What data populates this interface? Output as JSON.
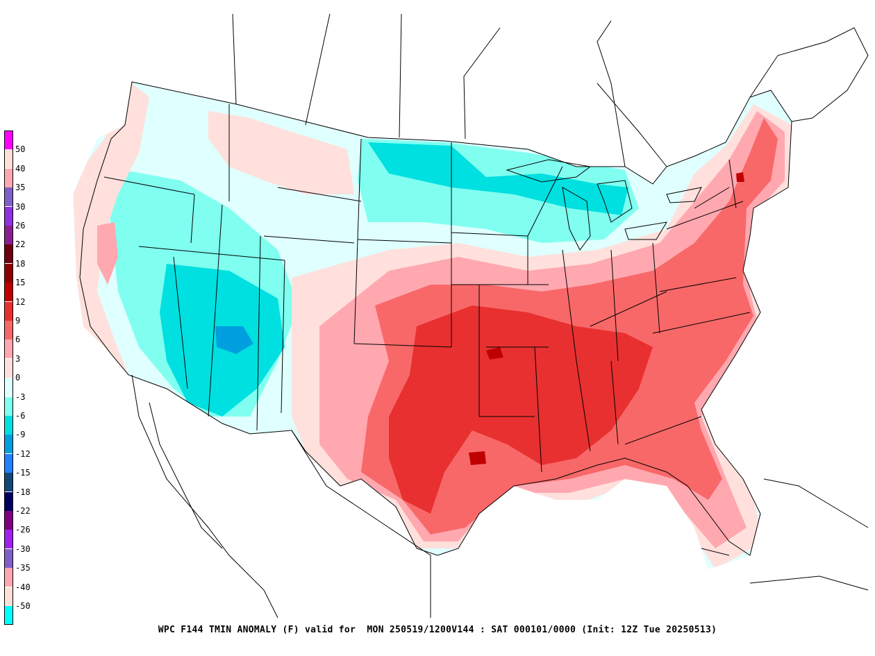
{
  "title": "WPC F144 TMIN ANOMALY (F) valid for  MON 250519/1200V144 : SAT 000101/0000 (Init: 12Z Tue 20250513)",
  "legend": {
    "entries": [
      {
        "label": "50",
        "color": "#ff00ff"
      },
      {
        "label": "40",
        "color": "#ffe0d8"
      },
      {
        "label": "35",
        "color": "#ffa8b0"
      },
      {
        "label": "30",
        "color": "#8060c8"
      },
      {
        "label": "26",
        "color": "#9030e0"
      },
      {
        "label": "22",
        "color": "#8a2090"
      },
      {
        "label": "18",
        "color": "#700010"
      },
      {
        "label": "15",
        "color": "#900000"
      },
      {
        "label": "12",
        "color": "#c00000"
      },
      {
        "label": "9",
        "color": "#e83030"
      },
      {
        "label": "6",
        "color": "#f86868"
      },
      {
        "label": "3",
        "color": "#ffa8b0"
      },
      {
        "label": "0",
        "color": "#ffe0dc"
      },
      {
        "label": "-3",
        "color": "#e0ffff"
      },
      {
        "label": "-6",
        "color": "#80fff0"
      },
      {
        "label": "-9",
        "color": "#00e0e0"
      },
      {
        "label": "-12",
        "color": "#00a0e0"
      },
      {
        "label": "-15",
        "color": "#2080ff"
      },
      {
        "label": "-18",
        "color": "#104878"
      },
      {
        "label": "-22",
        "color": "#000060"
      },
      {
        "label": "-26",
        "color": "#800080"
      },
      {
        "label": "-30",
        "color": "#a020f0"
      },
      {
        "label": "-35",
        "color": "#8060c8"
      },
      {
        "label": "-40",
        "color": "#ffa8b0"
      },
      {
        "label": "-50",
        "color": "#ffe0d8"
      },
      {
        "label": "",
        "color": "#00ffff"
      }
    ]
  },
  "colors": {
    "cold_light": "#e0ffff",
    "cold_mid": "#80fff0",
    "cold_strong": "#00e0e0",
    "cold_deep": "#00a0e0",
    "warm_light": "#ffe0dc",
    "warm_mid": "#ffa8b0",
    "warm_strong": "#f86868",
    "warm_deep": "#e83030",
    "warm_max": "#c00000",
    "boundary": "#000000"
  }
}
